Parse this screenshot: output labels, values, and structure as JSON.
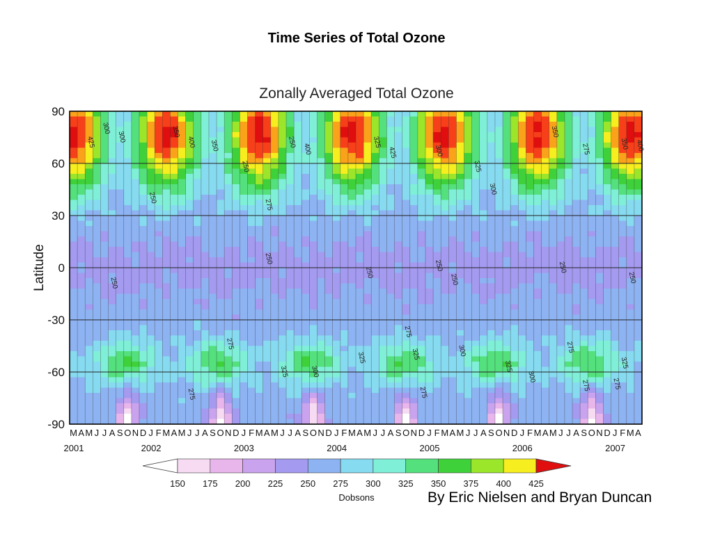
{
  "slide": {
    "title": "Time Series of Total Ozone",
    "credit": "By Eric Nielsen and Bryan Duncan"
  },
  "chart_data": {
    "type": "heatmap",
    "title": "Zonally Averaged Total Ozone",
    "xlabel": "",
    "ylabel": "Latitude",
    "x_start": "2001-03",
    "x_end": "2007-04",
    "month_tick_labels": [
      "M",
      "A",
      "M",
      "J",
      "J",
      "A",
      "S",
      "O",
      "N",
      "D",
      "J",
      "F",
      "M",
      "A",
      "M",
      "J",
      "J",
      "A",
      "S",
      "O",
      "N",
      "D",
      "J",
      "F",
      "M",
      "A",
      "M",
      "J",
      "J",
      "A",
      "S",
      "O",
      "N",
      "D",
      "J",
      "F",
      "M",
      "A",
      "M",
      "J",
      "J",
      "A",
      "S",
      "O",
      "N",
      "D",
      "J",
      "F",
      "M",
      "A",
      "M",
      "J",
      "J",
      "A",
      "S",
      "O",
      "N",
      "D",
      "J",
      "F",
      "M",
      "A",
      "M",
      "J",
      "J",
      "A",
      "S",
      "O",
      "N",
      "D",
      "J",
      "F",
      "M",
      "A"
    ],
    "year_labels": [
      {
        "label": "2001",
        "month_index": 0
      },
      {
        "label": "2002",
        "month_index": 10
      },
      {
        "label": "2003",
        "month_index": 22
      },
      {
        "label": "2004",
        "month_index": 34
      },
      {
        "label": "2005",
        "month_index": 46
      },
      {
        "label": "2006",
        "month_index": 58
      },
      {
        "label": "2007",
        "month_index": 70
      }
    ],
    "y_ticks": [
      90,
      60,
      30,
      0,
      -30,
      -60,
      -90
    ],
    "ylim": [
      -90,
      90
    ],
    "grid": true,
    "colorbar": {
      "label": "Dobsons",
      "ticks": [
        150,
        175,
        200,
        225,
        250,
        275,
        300,
        325,
        350,
        375,
        400,
        425
      ],
      "colors": [
        "#ffffff",
        "#f7dbf3",
        "#e9b6ec",
        "#c9a3ee",
        "#a49af0",
        "#8eb3f2",
        "#86dbf0",
        "#7ff0d7",
        "#53e07d",
        "#3fd13a",
        "#9be62a",
        "#f6ee1e",
        "#f9a21a",
        "#f7401a",
        "#e00e0e"
      ]
    },
    "contour_labels": [
      "250",
      "275",
      "300",
      "325",
      "350",
      "375",
      "400",
      "425"
    ],
    "description_values": {
      "tropics_min": 250,
      "north_spring_peak": 425,
      "south_midlat_peak": 350,
      "antarctic_hole_min": 175
    }
  }
}
